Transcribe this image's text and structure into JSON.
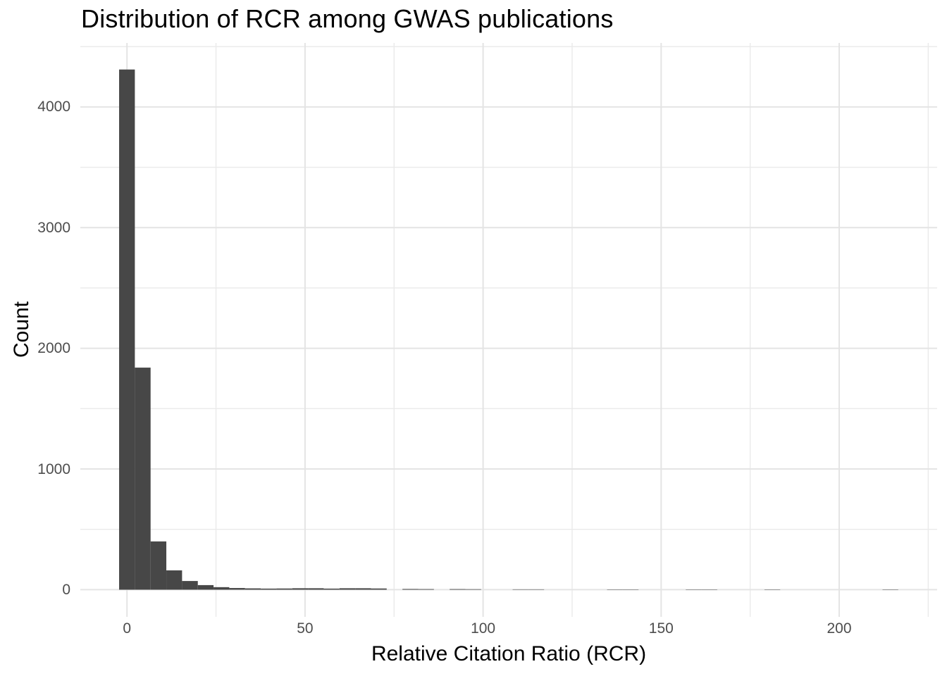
{
  "chart_data": {
    "type": "bar",
    "subtype": "histogram",
    "title": "Distribution of RCR among GWAS publications",
    "xlabel": "Relative Citation Ratio (RCR)",
    "ylabel": "Count",
    "x_ticks": [
      0,
      50,
      100,
      150,
      200
    ],
    "x_minor_ticks": [
      25,
      75,
      125,
      175,
      225
    ],
    "y_ticks": [
      0,
      1000,
      2000,
      3000,
      4000
    ],
    "y_minor_ticks": [
      500,
      1500,
      2500,
      3500,
      4500
    ],
    "xlim": [
      -13.1,
      227.5
    ],
    "ylim": [
      -225,
      4530
    ],
    "grid": "major+minor",
    "legend": "none",
    "bin_width": 4.42,
    "bars": [
      {
        "x": 0,
        "count": 4310
      },
      {
        "x": 4.42,
        "count": 1840
      },
      {
        "x": 8.84,
        "count": 400
      },
      {
        "x": 13.26,
        "count": 160
      },
      {
        "x": 17.68,
        "count": 72
      },
      {
        "x": 22.1,
        "count": 38
      },
      {
        "x": 26.52,
        "count": 21
      },
      {
        "x": 30.94,
        "count": 14
      },
      {
        "x": 35.36,
        "count": 11
      },
      {
        "x": 39.78,
        "count": 9
      },
      {
        "x": 44.2,
        "count": 10
      },
      {
        "x": 48.62,
        "count": 12
      },
      {
        "x": 53.04,
        "count": 12
      },
      {
        "x": 57.46,
        "count": 9
      },
      {
        "x": 61.88,
        "count": 12
      },
      {
        "x": 66.3,
        "count": 12
      },
      {
        "x": 70.72,
        "count": 10
      },
      {
        "x": 79.56,
        "count": 6
      },
      {
        "x": 83.98,
        "count": 5
      },
      {
        "x": 92.82,
        "count": 5
      },
      {
        "x": 97.24,
        "count": 4
      },
      {
        "x": 110.5,
        "count": 3
      },
      {
        "x": 114.92,
        "count": 3
      },
      {
        "x": 137.02,
        "count": 2
      },
      {
        "x": 141.44,
        "count": 2
      },
      {
        "x": 159.12,
        "count": 2
      },
      {
        "x": 163.54,
        "count": 2
      },
      {
        "x": 181.22,
        "count": 2
      },
      {
        "x": 214.37,
        "count": 2
      }
    ],
    "colors": {
      "bar": "#474747",
      "grid_major": "#e4e4e4",
      "grid_minor": "#eaeaea",
      "tick_text": "#4d4d4d",
      "title_text": "#000000",
      "background": "#ffffff"
    }
  }
}
